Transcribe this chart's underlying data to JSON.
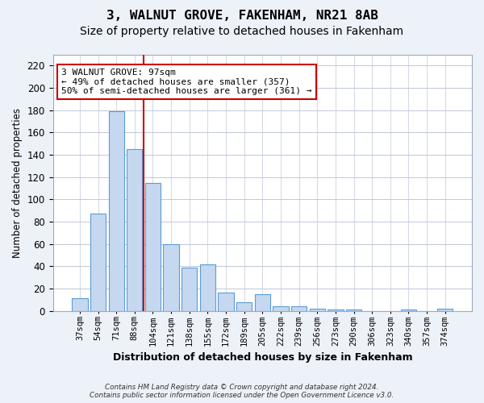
{
  "title": "3, WALNUT GROVE, FAKENHAM, NR21 8AB",
  "subtitle": "Size of property relative to detached houses in Fakenham",
  "xlabel": "Distribution of detached houses by size in Fakenham",
  "ylabel": "Number of detached properties",
  "categories": [
    "37sqm",
    "54sqm",
    "71sqm",
    "88sqm",
    "104sqm",
    "121sqm",
    "138sqm",
    "155sqm",
    "172sqm",
    "189sqm",
    "205sqm",
    "222sqm",
    "239sqm",
    "256sqm",
    "273sqm",
    "290sqm",
    "306sqm",
    "323sqm",
    "340sqm",
    "357sqm",
    "374sqm"
  ],
  "values": [
    11,
    87,
    179,
    145,
    115,
    60,
    39,
    42,
    16,
    8,
    15,
    4,
    4,
    2,
    1,
    1,
    0,
    0,
    1,
    0,
    2
  ],
  "bar_color": "#c5d8f0",
  "bar_edge_color": "#5b9bd5",
  "vline_x": 3.5,
  "vline_color": "#cc0000",
  "ylim": [
    0,
    230
  ],
  "yticks": [
    0,
    20,
    40,
    60,
    80,
    100,
    120,
    140,
    160,
    180,
    200,
    220
  ],
  "annotation_title": "3 WALNUT GROVE: 97sqm",
  "annotation_line1": "← 49% of detached houses are smaller (357)",
  "annotation_line2": "50% of semi-detached houses are larger (361) →",
  "annotation_box_color": "#ffffff",
  "annotation_box_edge": "#cc0000",
  "footer1": "Contains HM Land Registry data © Crown copyright and database right 2024.",
  "footer2": "Contains public sector information licensed under the Open Government Licence v3.0.",
  "bg_color": "#edf1f8",
  "plot_bg_color": "#ffffff",
  "grid_color": "#c0c8d8",
  "title_fontsize": 11.5,
  "subtitle_fontsize": 10,
  "tick_fontsize": 7.5
}
